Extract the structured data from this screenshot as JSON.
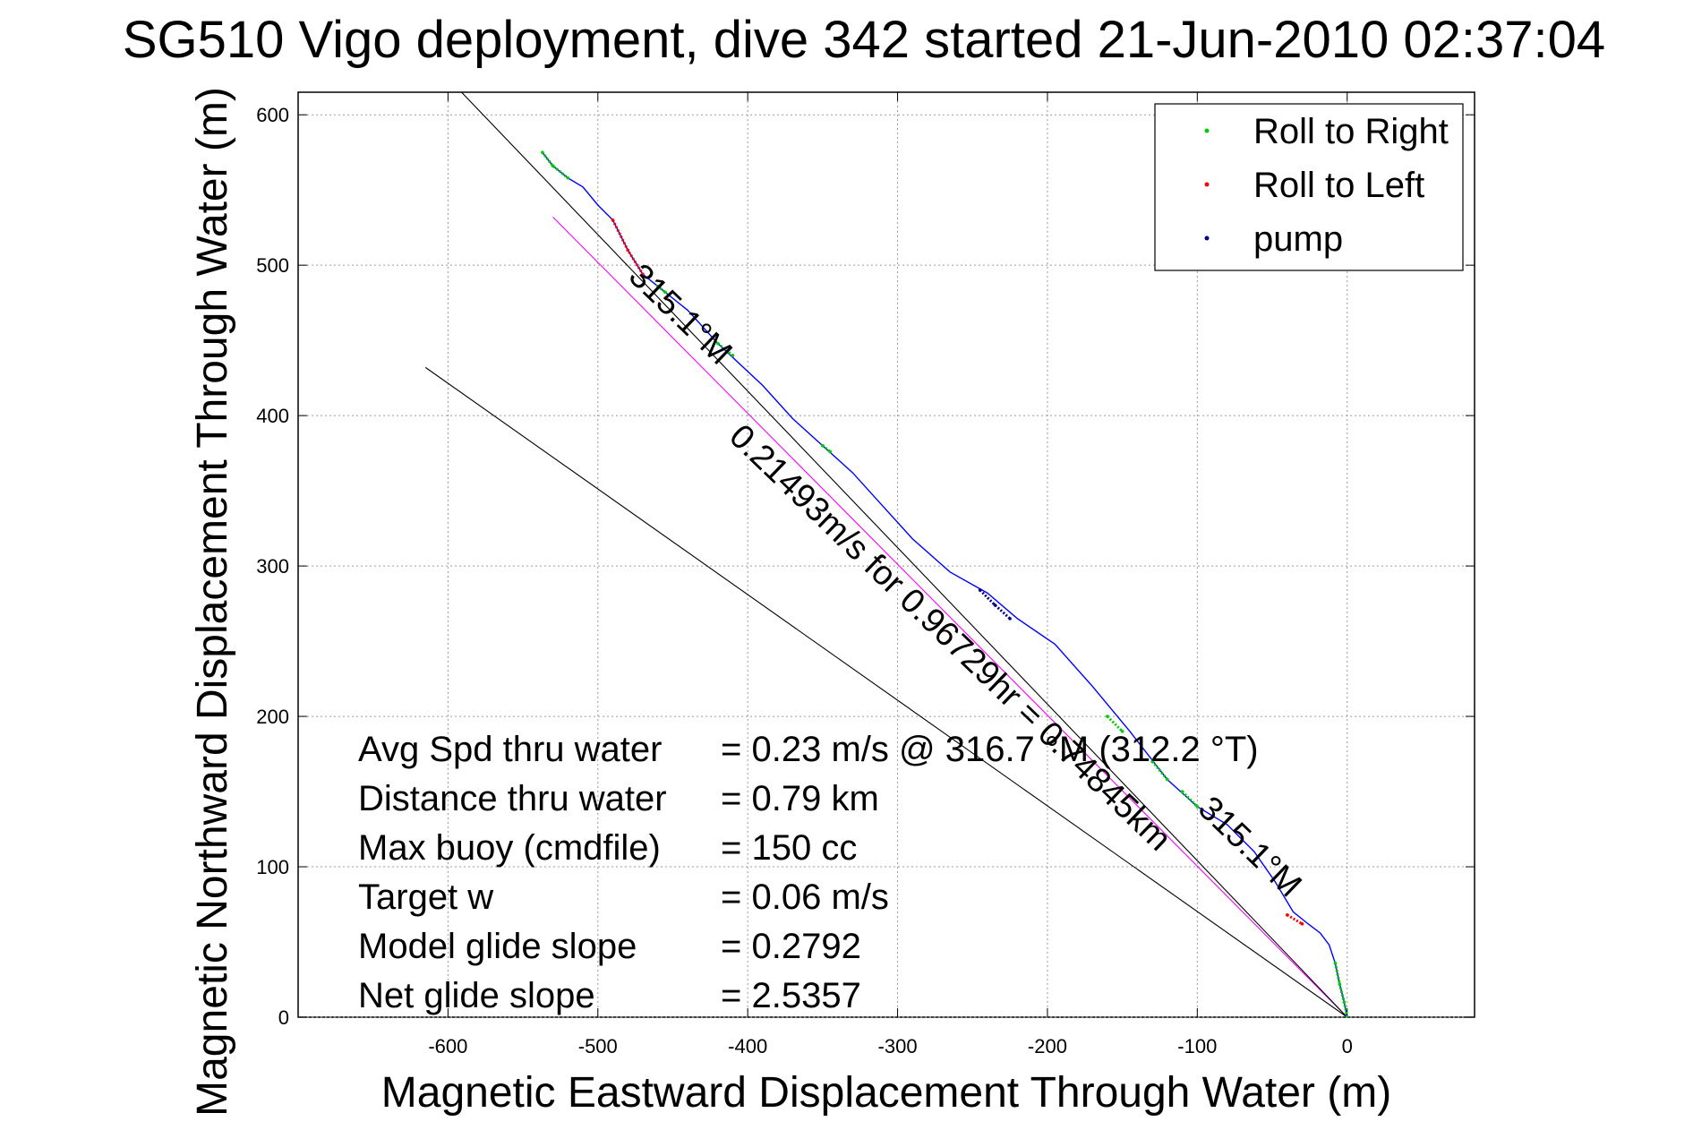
{
  "chart_data": {
    "type": "line",
    "title": "SG510 Vigo deployment, dive 342 started 21-Jun-2010 02:37:04",
    "xlabel": "Magnetic Eastward Displacement Through Water (m)",
    "ylabel": "Magnetic Northward Displacement Through Water (m)",
    "xlim": [
      -700,
      85
    ],
    "ylim": [
      0,
      615
    ],
    "xticks": [
      -600,
      -500,
      -400,
      -300,
      -200,
      -100,
      0
    ],
    "yticks": [
      0,
      100,
      200,
      300,
      400,
      500,
      600
    ],
    "xtick_labels": [
      "-600",
      "-500",
      "-400",
      "-300",
      "-200",
      "-100",
      "0"
    ],
    "ytick_labels": [
      "0",
      "100",
      "200",
      "300",
      "400",
      "500",
      "600"
    ],
    "grid": true,
    "legend_position": "top-right",
    "legend": [
      {
        "label": "Roll to Right",
        "color": "#00cc00"
      },
      {
        "label": "Roll to Left",
        "color": "#ff0000"
      },
      {
        "label": "pump",
        "color": "#000080"
      }
    ],
    "colors": {
      "track": "#0000ff",
      "glide": "#ff00ff",
      "reference": "#000000"
    },
    "series": [
      {
        "name": "",
        "role": "track",
        "x": [
          0,
          -2,
          -5,
          -8,
          -12,
          -18,
          -26,
          -36,
          -48,
          -62,
          -80,
          -100,
          -120,
          -145,
          -170,
          -195,
          -220,
          -240,
          -265,
          -290,
          -310,
          -330,
          -350,
          -370,
          -390,
          -420,
          -440,
          -460,
          -470,
          -480,
          -490,
          -500,
          -510,
          -520,
          -530,
          -537
        ],
        "y": [
          0,
          10,
          22,
          36,
          48,
          56,
          62,
          70,
          90,
          110,
          128,
          140,
          158,
          190,
          220,
          248,
          265,
          282,
          296,
          318,
          340,
          362,
          380,
          398,
          420,
          448,
          470,
          486,
          494,
          510,
          530,
          540,
          552,
          558,
          566,
          575
        ]
      },
      {
        "name": "",
        "role": "glide",
        "x": [
          0,
          -530
        ],
        "y": [
          0,
          532
        ]
      },
      {
        "name": "",
        "role": "reference",
        "x": [
          0,
          -615
        ],
        "y": [
          0,
          640
        ]
      },
      {
        "name": "",
        "role": "reference",
        "x": [
          0,
          -615
        ],
        "y": [
          0,
          432
        ]
      }
    ],
    "highlights": [
      {
        "label": "Roll to Right",
        "x": [
          -537,
          -530,
          -520
        ],
        "y": [
          575,
          566,
          558
        ]
      },
      {
        "label": "Roll to Left",
        "x": [
          -490,
          -480,
          -470
        ],
        "y": [
          530,
          510,
          494
        ]
      },
      {
        "label": "Roll to Right",
        "x": [
          -460,
          -455
        ],
        "y": [
          486,
          482
        ]
      },
      {
        "label": "Roll to Right",
        "x": [
          -420,
          -410
        ],
        "y": [
          448,
          440
        ]
      },
      {
        "label": "Roll to Right",
        "x": [
          -350,
          -345
        ],
        "y": [
          380,
          376
        ]
      },
      {
        "label": "pump",
        "x": [
          -245,
          -235,
          -225
        ],
        "y": [
          284,
          274,
          265
        ]
      },
      {
        "label": "Roll to Right",
        "x": [
          -160,
          -150
        ],
        "y": [
          200,
          190
        ]
      },
      {
        "label": "Roll to Right",
        "x": [
          -130,
          -120
        ],
        "y": [
          170,
          158
        ]
      },
      {
        "label": "Roll to Right",
        "x": [
          -110,
          -100
        ],
        "y": [
          150,
          140
        ]
      },
      {
        "label": "Roll to Left",
        "x": [
          -40,
          -30
        ],
        "y": [
          68,
          62
        ]
      },
      {
        "label": "Roll to Right",
        "x": [
          -8,
          -5,
          -2,
          0
        ],
        "y": [
          36,
          22,
          10,
          0
        ]
      }
    ],
    "annotations": [
      {
        "text": "315.1°M",
        "x": -450,
        "y": 462,
        "angle": 43.9
      },
      {
        "text": "0.21493m/s for 0.96729hr = 0.74845km",
        "x": -270,
        "y": 247,
        "angle": 43.9
      },
      {
        "text": "315.1°M",
        "x": -70,
        "y": 108,
        "angle": 43.9
      }
    ],
    "stats": [
      {
        "label": "Avg Spd thru water",
        "value": "=  0.23 m/s @ 316.7 °M (312.2 °T)"
      },
      {
        "label": "Distance thru water",
        "value": "=  0.79 km"
      },
      {
        "label": "Max buoy (cmdfile)",
        "value": "= 150 cc"
      },
      {
        "label": "Target w",
        "value": "= 0.06 m/s"
      },
      {
        "label": "Model glide slope",
        "value": "= 0.2792"
      },
      {
        "label": "Net glide slope",
        "value": "= 2.5357"
      }
    ]
  }
}
